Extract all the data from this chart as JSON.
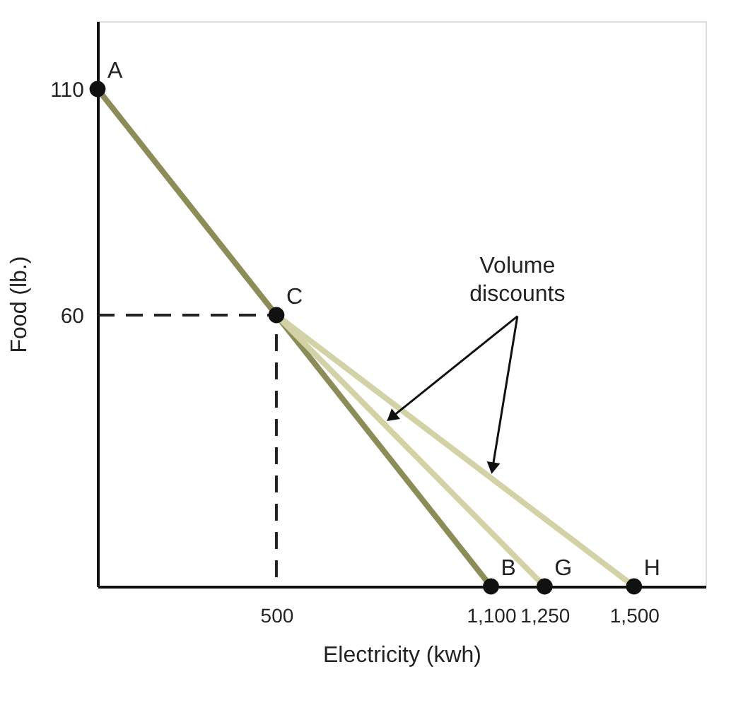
{
  "chart_data": {
    "type": "line",
    "xlabel": "Electricity (kwh)",
    "ylabel": "Food (lb.)",
    "xlim": [
      0,
      1700
    ],
    "ylim": [
      0,
      125
    ],
    "xticks": [
      500,
      {
        "value": 1100,
        "label": "1,100"
      },
      {
        "value": 1250,
        "label": "1,250"
      },
      {
        "value": 1500,
        "label": "1,500"
      }
    ],
    "yticks": [
      60,
      110
    ],
    "grid": false,
    "series": [
      {
        "color": "#8c8c58",
        "x": [
          0,
          500,
          1100
        ],
        "values": [
          110,
          60,
          0
        ],
        "line_style": "solid"
      },
      {
        "color": "#d2d2a6",
        "x": [
          500,
          1250
        ],
        "values": [
          60,
          0
        ],
        "line_style": "solid"
      },
      {
        "color": "#d2d2a6",
        "x": [
          500,
          1500
        ],
        "values": [
          60,
          0
        ],
        "line_style": "solid"
      },
      {
        "color": "#222222",
        "x": [
          0,
          500,
          500
        ],
        "values": [
          60,
          60,
          0
        ],
        "line_style": "dashed"
      },
      {
        "type": "scatter",
        "color": "#111111",
        "marker": "circle",
        "x": [
          0,
          500,
          1100,
          1250,
          1500
        ],
        "values": [
          110,
          60,
          0,
          0,
          0
        ]
      }
    ],
    "annotations": [
      {
        "text": "A",
        "x": 0,
        "y": 110
      },
      {
        "text": "C",
        "x": 500,
        "y": 60
      },
      {
        "text": "B",
        "x": 1100,
        "y": 0
      },
      {
        "text": "G",
        "x": 1250,
        "y": 0
      },
      {
        "text": "H",
        "x": 1500,
        "y": 0
      },
      {
        "text": "Volume discounts",
        "x": 800,
        "y": 36
      }
    ]
  }
}
